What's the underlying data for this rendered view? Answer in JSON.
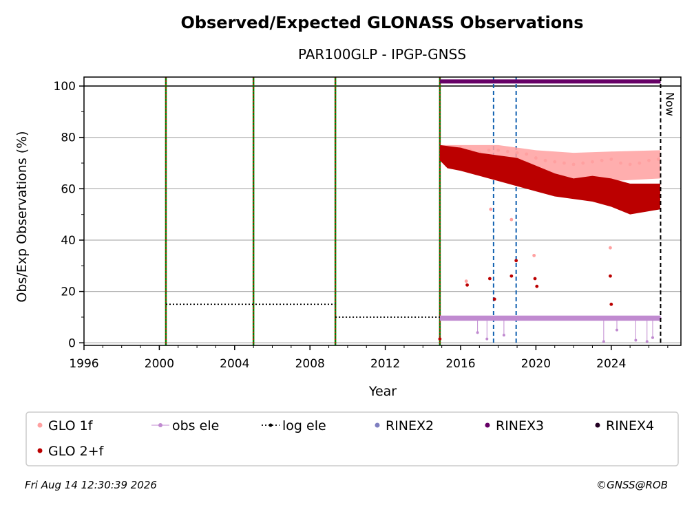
{
  "chart_data": {
    "type": "scatter",
    "title": "Observed/Expected GLONASS Observations",
    "subtitle": "PAR100GLP - IPGP-GNSS",
    "xlabel": "Year",
    "ylabel": "Obs/Exp Observations (%)",
    "xlim": [
      1996,
      2027.7
    ],
    "ylim": [
      -1,
      103.5
    ],
    "x_ticks": [
      "1996",
      "2000",
      "2004",
      "2008",
      "2012",
      "2016",
      "2020",
      "2024"
    ],
    "y_ticks": [
      "0",
      "20",
      "40",
      "60",
      "80",
      "100"
    ],
    "grid": "horizontal",
    "legend_position": "bottom",
    "now_label": "Now",
    "now_year": 2026.62,
    "reference_line": 100,
    "equipment_changes": [
      2000.35,
      2005.0,
      2009.35,
      2014.9
    ],
    "receiver_changes": [
      2017.75,
      2018.95
    ],
    "log_elevation": [
      {
        "from": 2000.35,
        "to": 2009.35,
        "value": 15
      },
      {
        "from": 2009.35,
        "to": 2026.62,
        "value": 10
      }
    ],
    "rinex3_bar": {
      "from": 2014.9,
      "to": 2026.62,
      "value": 101.8
    },
    "series": [
      {
        "name": "GLO 1f",
        "color": "#ffa0a0",
        "x": [
          2015.0,
          2015.5,
          2016.0,
          2016.5,
          2017.0,
          2017.5,
          2018.0,
          2018.5,
          2019.0,
          2019.5,
          2020.0,
          2020.5,
          2021.0,
          2021.5,
          2022.0,
          2022.5,
          2023.0,
          2023.5,
          2024.0,
          2024.5,
          2025.0,
          2025.5,
          2026.0,
          2026.5,
          2016.3,
          2017.6,
          2018.7,
          2019.9,
          2023.95
        ],
        "y": [
          75,
          75.5,
          76,
          75,
          74,
          75,
          75,
          74.5,
          74,
          73.5,
          72,
          71,
          70.5,
          70,
          69.5,
          70,
          70.5,
          71,
          71.5,
          70,
          69.5,
          70,
          71,
          71.5,
          24,
          52,
          48,
          34,
          37
        ]
      },
      {
        "name": "obs ele",
        "color": "#c08ad0",
        "x": [
          2015.0,
          2016.0,
          2017.0,
          2018.0,
          2019.0,
          2020.0,
          2021.0,
          2022.0,
          2023.0,
          2024.0,
          2025.0,
          2026.0,
          2026.6,
          2016.9,
          2017.4,
          2018.3,
          2023.6,
          2024.3,
          2025.3,
          2025.9,
          2026.2
        ],
        "y": [
          9.5,
          9.5,
          9.5,
          9.5,
          9.5,
          9.5,
          9.5,
          9.5,
          9.5,
          9.5,
          9.5,
          9.5,
          9.5,
          4,
          1.5,
          3,
          0.5,
          5,
          1,
          0.5,
          2
        ]
      },
      {
        "name": "log ele",
        "color": "#000000",
        "x": [],
        "y": []
      },
      {
        "name": "RINEX2",
        "color": "#7f7fc0",
        "x": [],
        "y": []
      },
      {
        "name": "RINEX3",
        "color": "#660066",
        "x": [],
        "y": []
      },
      {
        "name": "RINEX4",
        "color": "#220022",
        "x": [],
        "y": []
      },
      {
        "name": "GLO 2+f",
        "color": "#bb0000",
        "x": [
          2014.9,
          2015.0,
          2015.5,
          2016.0,
          2016.5,
          2017.0,
          2017.5,
          2018.0,
          2018.5,
          2019.0,
          2019.5,
          2020.0,
          2020.5,
          2021.0,
          2021.5,
          2022.0,
          2022.5,
          2023.0,
          2023.5,
          2024.0,
          2024.5,
          2025.0,
          2025.5,
          2026.0,
          2026.5,
          2016.35,
          2017.55,
          2017.8,
          2018.7,
          2018.95,
          2019.95,
          2020.05,
          2023.95,
          2024.0
        ],
        "y": [
          1.5,
          74,
          70,
          68,
          69,
          71,
          70,
          69,
          68,
          67,
          66,
          64,
          62,
          61,
          60,
          59,
          58.5,
          59,
          58,
          58.5,
          57,
          56,
          55,
          54.5,
          57,
          22.5,
          25,
          17,
          26,
          32,
          25,
          22,
          26,
          15
        ]
      }
    ]
  },
  "footer": {
    "timestamp": "Fri Aug 14 12:30:39 2026",
    "copyright": "©GNSS@ROB"
  }
}
